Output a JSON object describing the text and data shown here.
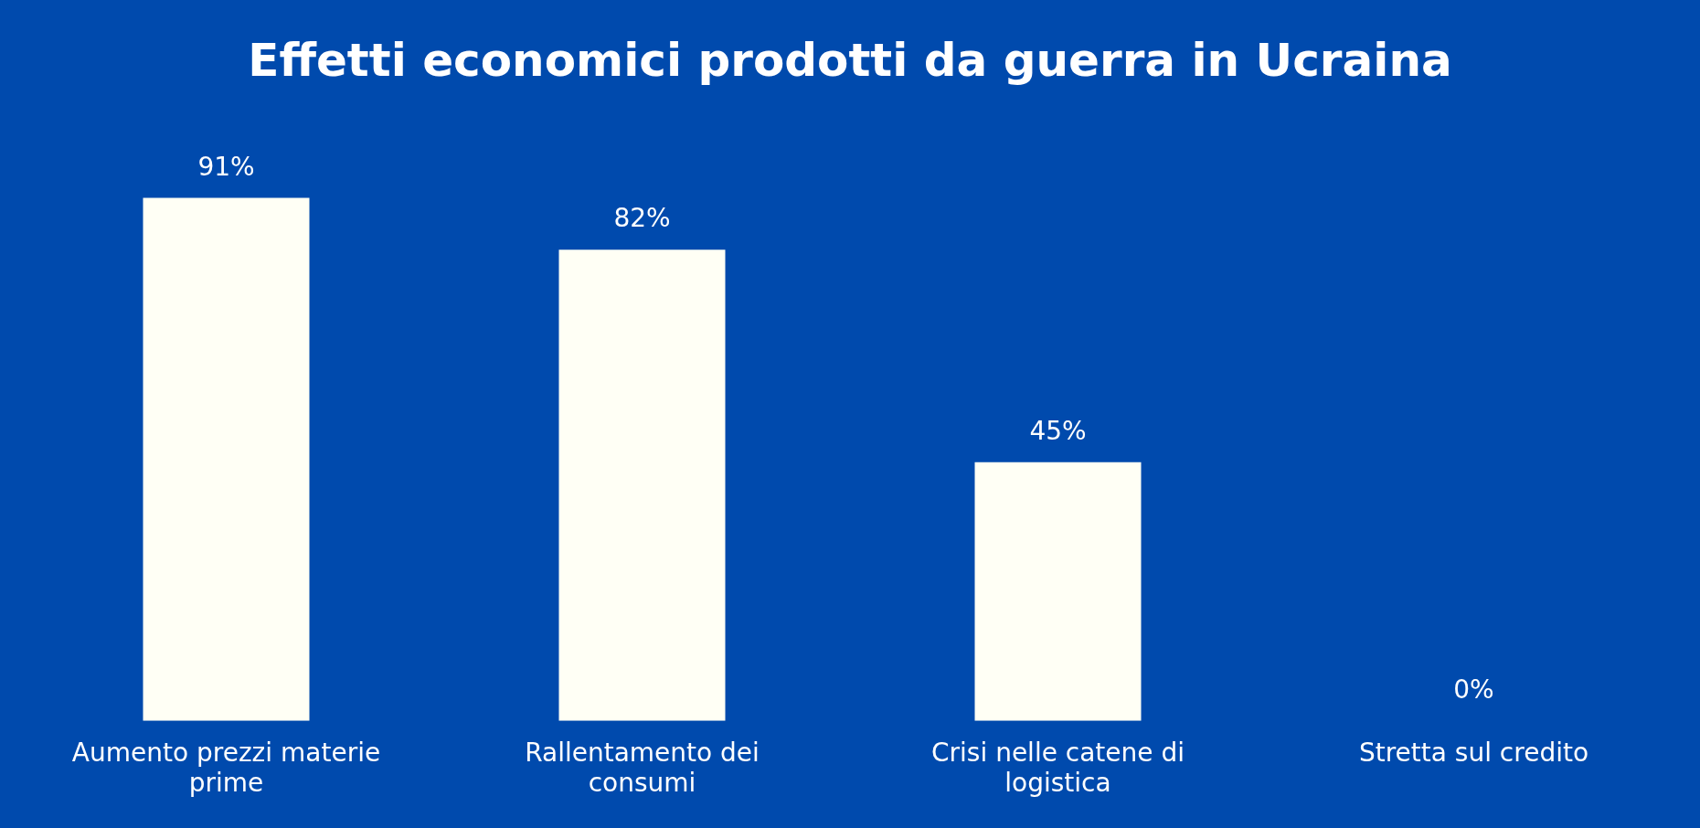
{
  "chart_data": {
    "type": "bar",
    "title": "Effetti economici prodotti da guerra in Ucraina",
    "categories": [
      "Aumento prezzi materie prime",
      "Rallentamento dei consumi",
      "Crisi nelle catene di logistica",
      "Stretta sul credito"
    ],
    "values": [
      91,
      82,
      45,
      0
    ],
    "value_labels": [
      "91%",
      "82%",
      "45%",
      "0%"
    ],
    "color": "#fffff5",
    "tick_labels": "x",
    "grid": false,
    "legend": false
  }
}
